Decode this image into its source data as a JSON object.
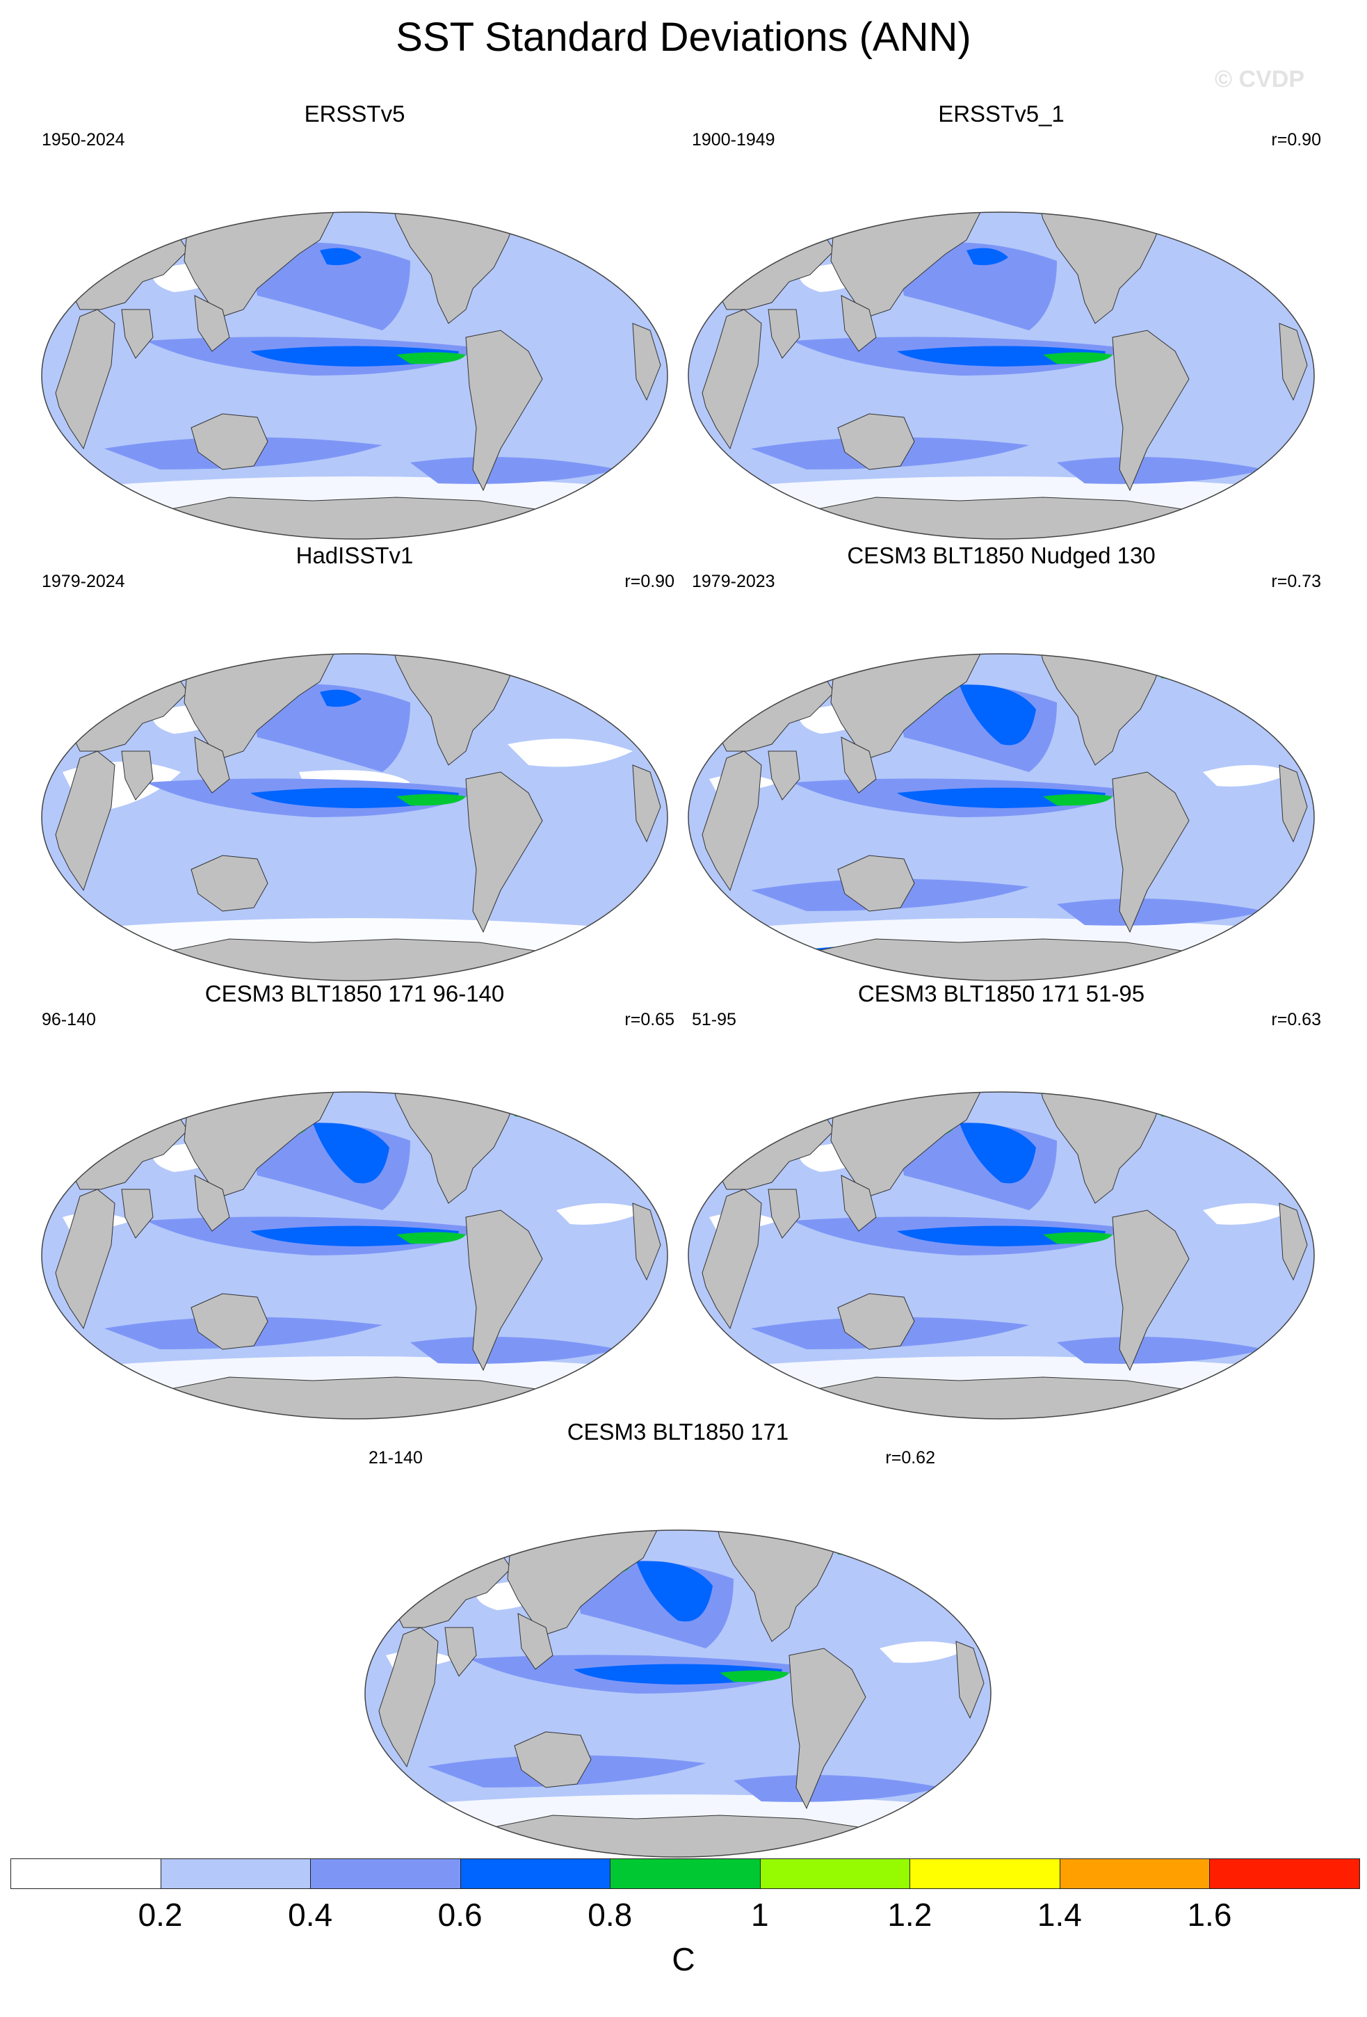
{
  "title": "SST Standard Deviations (ANN)",
  "watermark": "© CVDP",
  "panels": [
    {
      "title": "ERSSTv5",
      "period": "1950-2024",
      "corr": "",
      "style": "obs"
    },
    {
      "title": "ERSSTv5_1",
      "period": "1900-1949",
      "corr": "r=0.90",
      "style": "obs"
    },
    {
      "title": "HadISSTv1",
      "period": "1979-2024",
      "corr": "r=0.90",
      "style": "obs_low"
    },
    {
      "title": "CESM3 BLT1850 Nudged 130",
      "period": "1979-2023",
      "corr": "r=0.73",
      "style": "model_strong"
    },
    {
      "title": "CESM3 BLT1850 171 96-140",
      "period": "96-140",
      "corr": "r=0.65",
      "style": "model"
    },
    {
      "title": "CESM3 BLT1850 171 51-95",
      "period": "51-95",
      "corr": "r=0.63",
      "style": "model"
    },
    {
      "title": "CESM3 BLT1850 171",
      "period": "21-140",
      "corr": "r=0.62",
      "style": "model"
    }
  ],
  "colorbar": {
    "unit": "C",
    "labels": [
      "0.2",
      "0.4",
      "0.6",
      "0.8",
      "1",
      "1.2",
      "1.4",
      "1.6"
    ],
    "levels": [
      0.2,
      0.4,
      0.6,
      0.8,
      1.0,
      1.2,
      1.4,
      1.6
    ],
    "colors": [
      "#ffffff",
      "#b4c8fa",
      "#7d96f6",
      "#0064ff",
      "#00c832",
      "#96fa00",
      "#ffff00",
      "#ffa000",
      "#ff1e00"
    ]
  },
  "land_color": "#c0c0c0"
}
